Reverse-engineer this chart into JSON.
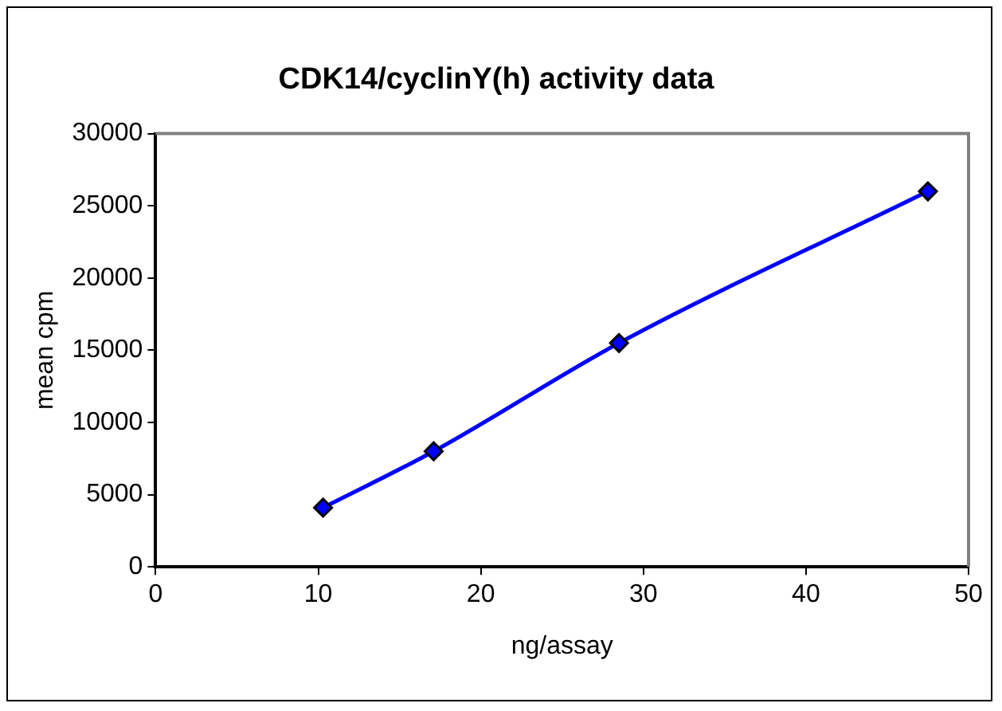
{
  "chart_data": {
    "type": "line",
    "title": "CDK14/cyclinY(h) activity data",
    "xlabel": "ng/assay",
    "ylabel": "mean cpm",
    "x": [
      10.3,
      17.1,
      28.5,
      47.5
    ],
    "series": [
      {
        "color": "#0000ff",
        "values": [
          4100,
          8000,
          15500,
          26000
        ]
      }
    ],
    "xlim": [
      0,
      50
    ],
    "xticks": [
      0,
      10,
      20,
      30,
      40,
      50
    ],
    "ylim": [
      0,
      30000
    ],
    "yticks": [
      0,
      5000,
      10000,
      15000,
      20000,
      25000,
      30000
    ],
    "marker": "diamond",
    "line_style": "solid",
    "legend": false,
    "grid": false
  }
}
